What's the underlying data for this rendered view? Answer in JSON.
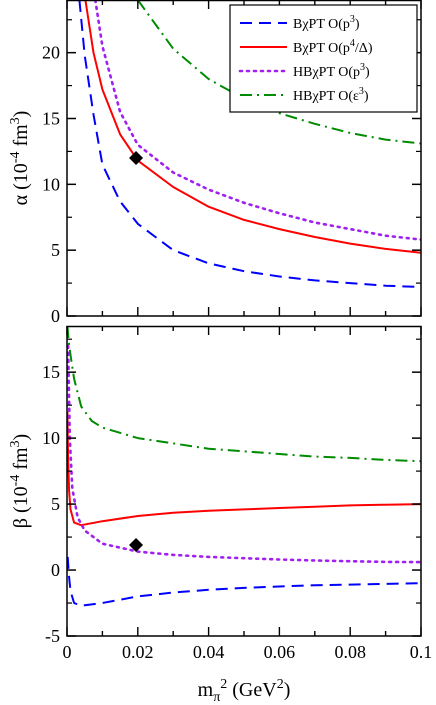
{
  "chart_data": [
    {
      "type": "line",
      "panel": "top",
      "ylabel": "α (10⁻⁴ fm³)",
      "ylabel_parts": {
        "sym": "α",
        "open": "(10",
        "exp": "-4",
        "unit": " fm",
        "unit_exp": "3",
        "close": ")"
      },
      "xlim": [
        0,
        0.1
      ],
      "ylim": [
        0,
        24
      ],
      "yticks": [
        "0",
        "5",
        "10",
        "15",
        "20"
      ],
      "legend_placement": "top-right",
      "legend": [
        {
          "text": "BχPT O(p",
          "sup": "3",
          "tail": ")",
          "color": "#0000ff",
          "style": "dashed"
        },
        {
          "text": "BχPT O(p",
          "sup": "4",
          "tail": "/Δ)",
          "color": "#ff0000",
          "style": "solid"
        },
        {
          "text": "HBχPT O(p",
          "sup": "3",
          "tail": ")",
          "color": "#a020f0",
          "style": "dotted"
        },
        {
          "text": "HBχPT O(ε",
          "sup": "3",
          "tail": ")",
          "color": "#008b00",
          "style": "dashdot"
        }
      ],
      "series": [
        {
          "name": "BχPT O(p3)",
          "color": "#0000ff",
          "style": "dashed",
          "points": [
            [
              0.0035,
              24
            ],
            [
              0.005,
              19.8
            ],
            [
              0.0075,
              15.3
            ],
            [
              0.01,
              11.5
            ],
            [
              0.015,
              8.7
            ],
            [
              0.02,
              7.0
            ],
            [
              0.03,
              5.0
            ],
            [
              0.04,
              4.0
            ],
            [
              0.05,
              3.4
            ],
            [
              0.06,
              3.0
            ],
            [
              0.07,
              2.7
            ],
            [
              0.08,
              2.5
            ],
            [
              0.09,
              2.3
            ],
            [
              0.1,
              2.2
            ]
          ]
        },
        {
          "name": "BχPT O(p4/Δ)",
          "color": "#ff0000",
          "style": "solid",
          "points": [
            [
              0.0052,
              24
            ],
            [
              0.0075,
              20.0
            ],
            [
              0.01,
              17.2
            ],
            [
              0.015,
              13.8
            ],
            [
              0.02,
              11.8
            ],
            [
              0.03,
              9.8
            ],
            [
              0.04,
              8.3
            ],
            [
              0.05,
              7.3
            ],
            [
              0.06,
              6.6
            ],
            [
              0.07,
              6.0
            ],
            [
              0.08,
              5.5
            ],
            [
              0.09,
              5.1
            ],
            [
              0.1,
              4.8
            ]
          ]
        },
        {
          "name": "HBχPT O(p3)",
          "color": "#a020f0",
          "style": "dotted",
          "points": [
            [
              0.008,
              24
            ],
            [
              0.01,
              20.5
            ],
            [
              0.015,
              15.5
            ],
            [
              0.02,
              13.0
            ],
            [
              0.03,
              10.9
            ],
            [
              0.04,
              9.6
            ],
            [
              0.05,
              8.6
            ],
            [
              0.06,
              7.8
            ],
            [
              0.07,
              7.1
            ],
            [
              0.08,
              6.6
            ],
            [
              0.09,
              6.1
            ],
            [
              0.1,
              5.8
            ]
          ]
        },
        {
          "name": "HBχPT O(ε3)",
          "color": "#008b00",
          "style": "dashdot",
          "points": [
            [
              0.02,
              24
            ],
            [
              0.03,
              20.3
            ],
            [
              0.04,
              18.0
            ],
            [
              0.05,
              16.5
            ],
            [
              0.06,
              15.4
            ],
            [
              0.07,
              14.6
            ],
            [
              0.08,
              13.9
            ],
            [
              0.09,
              13.4
            ],
            [
              0.1,
              13.1
            ]
          ]
        }
      ],
      "markers": [
        {
          "x": 0.0195,
          "y": 12.0,
          "shape": "diamond",
          "color": "#000000"
        }
      ]
    },
    {
      "type": "line",
      "panel": "bottom",
      "xlabel_parts": {
        "sym": "m",
        "sub": "π",
        "sup": "2",
        "open": " (GeV",
        "unit_exp": "2",
        "close": ")"
      },
      "ylabel_parts": {
        "sym": "β",
        "open": "(10",
        "exp": "-4",
        "unit": " fm",
        "unit_exp": "3",
        "close": ")"
      },
      "xlim": [
        0,
        0.1
      ],
      "ylim": [
        -5,
        18.5
      ],
      "xticks": [
        "0",
        "0.02",
        "0.04",
        "0.06",
        "0.08",
        "0.1"
      ],
      "yticks": [
        "-5",
        "0",
        "5",
        "10",
        "15"
      ],
      "series": [
        {
          "name": "BχPT O(p3)",
          "color": "#0000ff",
          "style": "dashed",
          "points": [
            [
              0.0002,
              1.0
            ],
            [
              0.0005,
              -0.3
            ],
            [
              0.001,
              -1.6
            ],
            [
              0.002,
              -2.5
            ],
            [
              0.004,
              -2.7
            ],
            [
              0.01,
              -2.5
            ],
            [
              0.02,
              -2.0
            ],
            [
              0.03,
              -1.7
            ],
            [
              0.04,
              -1.5
            ],
            [
              0.05,
              -1.35
            ],
            [
              0.06,
              -1.25
            ],
            [
              0.07,
              -1.15
            ],
            [
              0.08,
              -1.1
            ],
            [
              0.09,
              -1.05
            ],
            [
              0.1,
              -1.0
            ]
          ]
        },
        {
          "name": "BχPT O(p4/Δ)",
          "color": "#ff0000",
          "style": "solid",
          "points": [
            [
              0.0001,
              12.0
            ],
            [
              0.0003,
              8.5
            ],
            [
              0.0006,
              6.0
            ],
            [
              0.001,
              4.6
            ],
            [
              0.002,
              3.6
            ],
            [
              0.004,
              3.4
            ],
            [
              0.01,
              3.7
            ],
            [
              0.02,
              4.1
            ],
            [
              0.03,
              4.35
            ],
            [
              0.04,
              4.5
            ],
            [
              0.05,
              4.6
            ],
            [
              0.06,
              4.7
            ],
            [
              0.07,
              4.8
            ],
            [
              0.08,
              4.9
            ],
            [
              0.09,
              4.95
            ],
            [
              0.1,
              5.0
            ]
          ]
        },
        {
          "name": "HBχPT O(p3)",
          "color": "#a020f0",
          "style": "dotted",
          "points": [
            [
              0.0003,
              17.0
            ],
            [
              0.0008,
              10.0
            ],
            [
              0.0015,
              6.2
            ],
            [
              0.003,
              4.0
            ],
            [
              0.005,
              3.0
            ],
            [
              0.01,
              2.0
            ],
            [
              0.02,
              1.4
            ],
            [
              0.03,
              1.15
            ],
            [
              0.04,
              1.0
            ],
            [
              0.05,
              0.9
            ],
            [
              0.06,
              0.8
            ],
            [
              0.07,
              0.72
            ],
            [
              0.08,
              0.67
            ],
            [
              0.09,
              0.62
            ],
            [
              0.1,
              0.6
            ]
          ]
        },
        {
          "name": "HBχPT O(ε3)",
          "color": "#008b00",
          "style": "dashdot",
          "points": [
            [
              0.0001,
              18.5
            ],
            [
              0.0005,
              17.3
            ],
            [
              0.001,
              16.3
            ],
            [
              0.002,
              14.5
            ],
            [
              0.004,
              12.4
            ],
            [
              0.007,
              11.3
            ],
            [
              0.01,
              10.8
            ],
            [
              0.02,
              10.0
            ],
            [
              0.03,
              9.6
            ],
            [
              0.04,
              9.2
            ],
            [
              0.05,
              9.0
            ],
            [
              0.06,
              8.8
            ],
            [
              0.07,
              8.6
            ],
            [
              0.08,
              8.5
            ],
            [
              0.09,
              8.35
            ],
            [
              0.1,
              8.25
            ]
          ]
        }
      ],
      "markers": [
        {
          "x": 0.0195,
          "y": 1.9,
          "shape": "diamond",
          "color": "#000000"
        }
      ]
    }
  ]
}
